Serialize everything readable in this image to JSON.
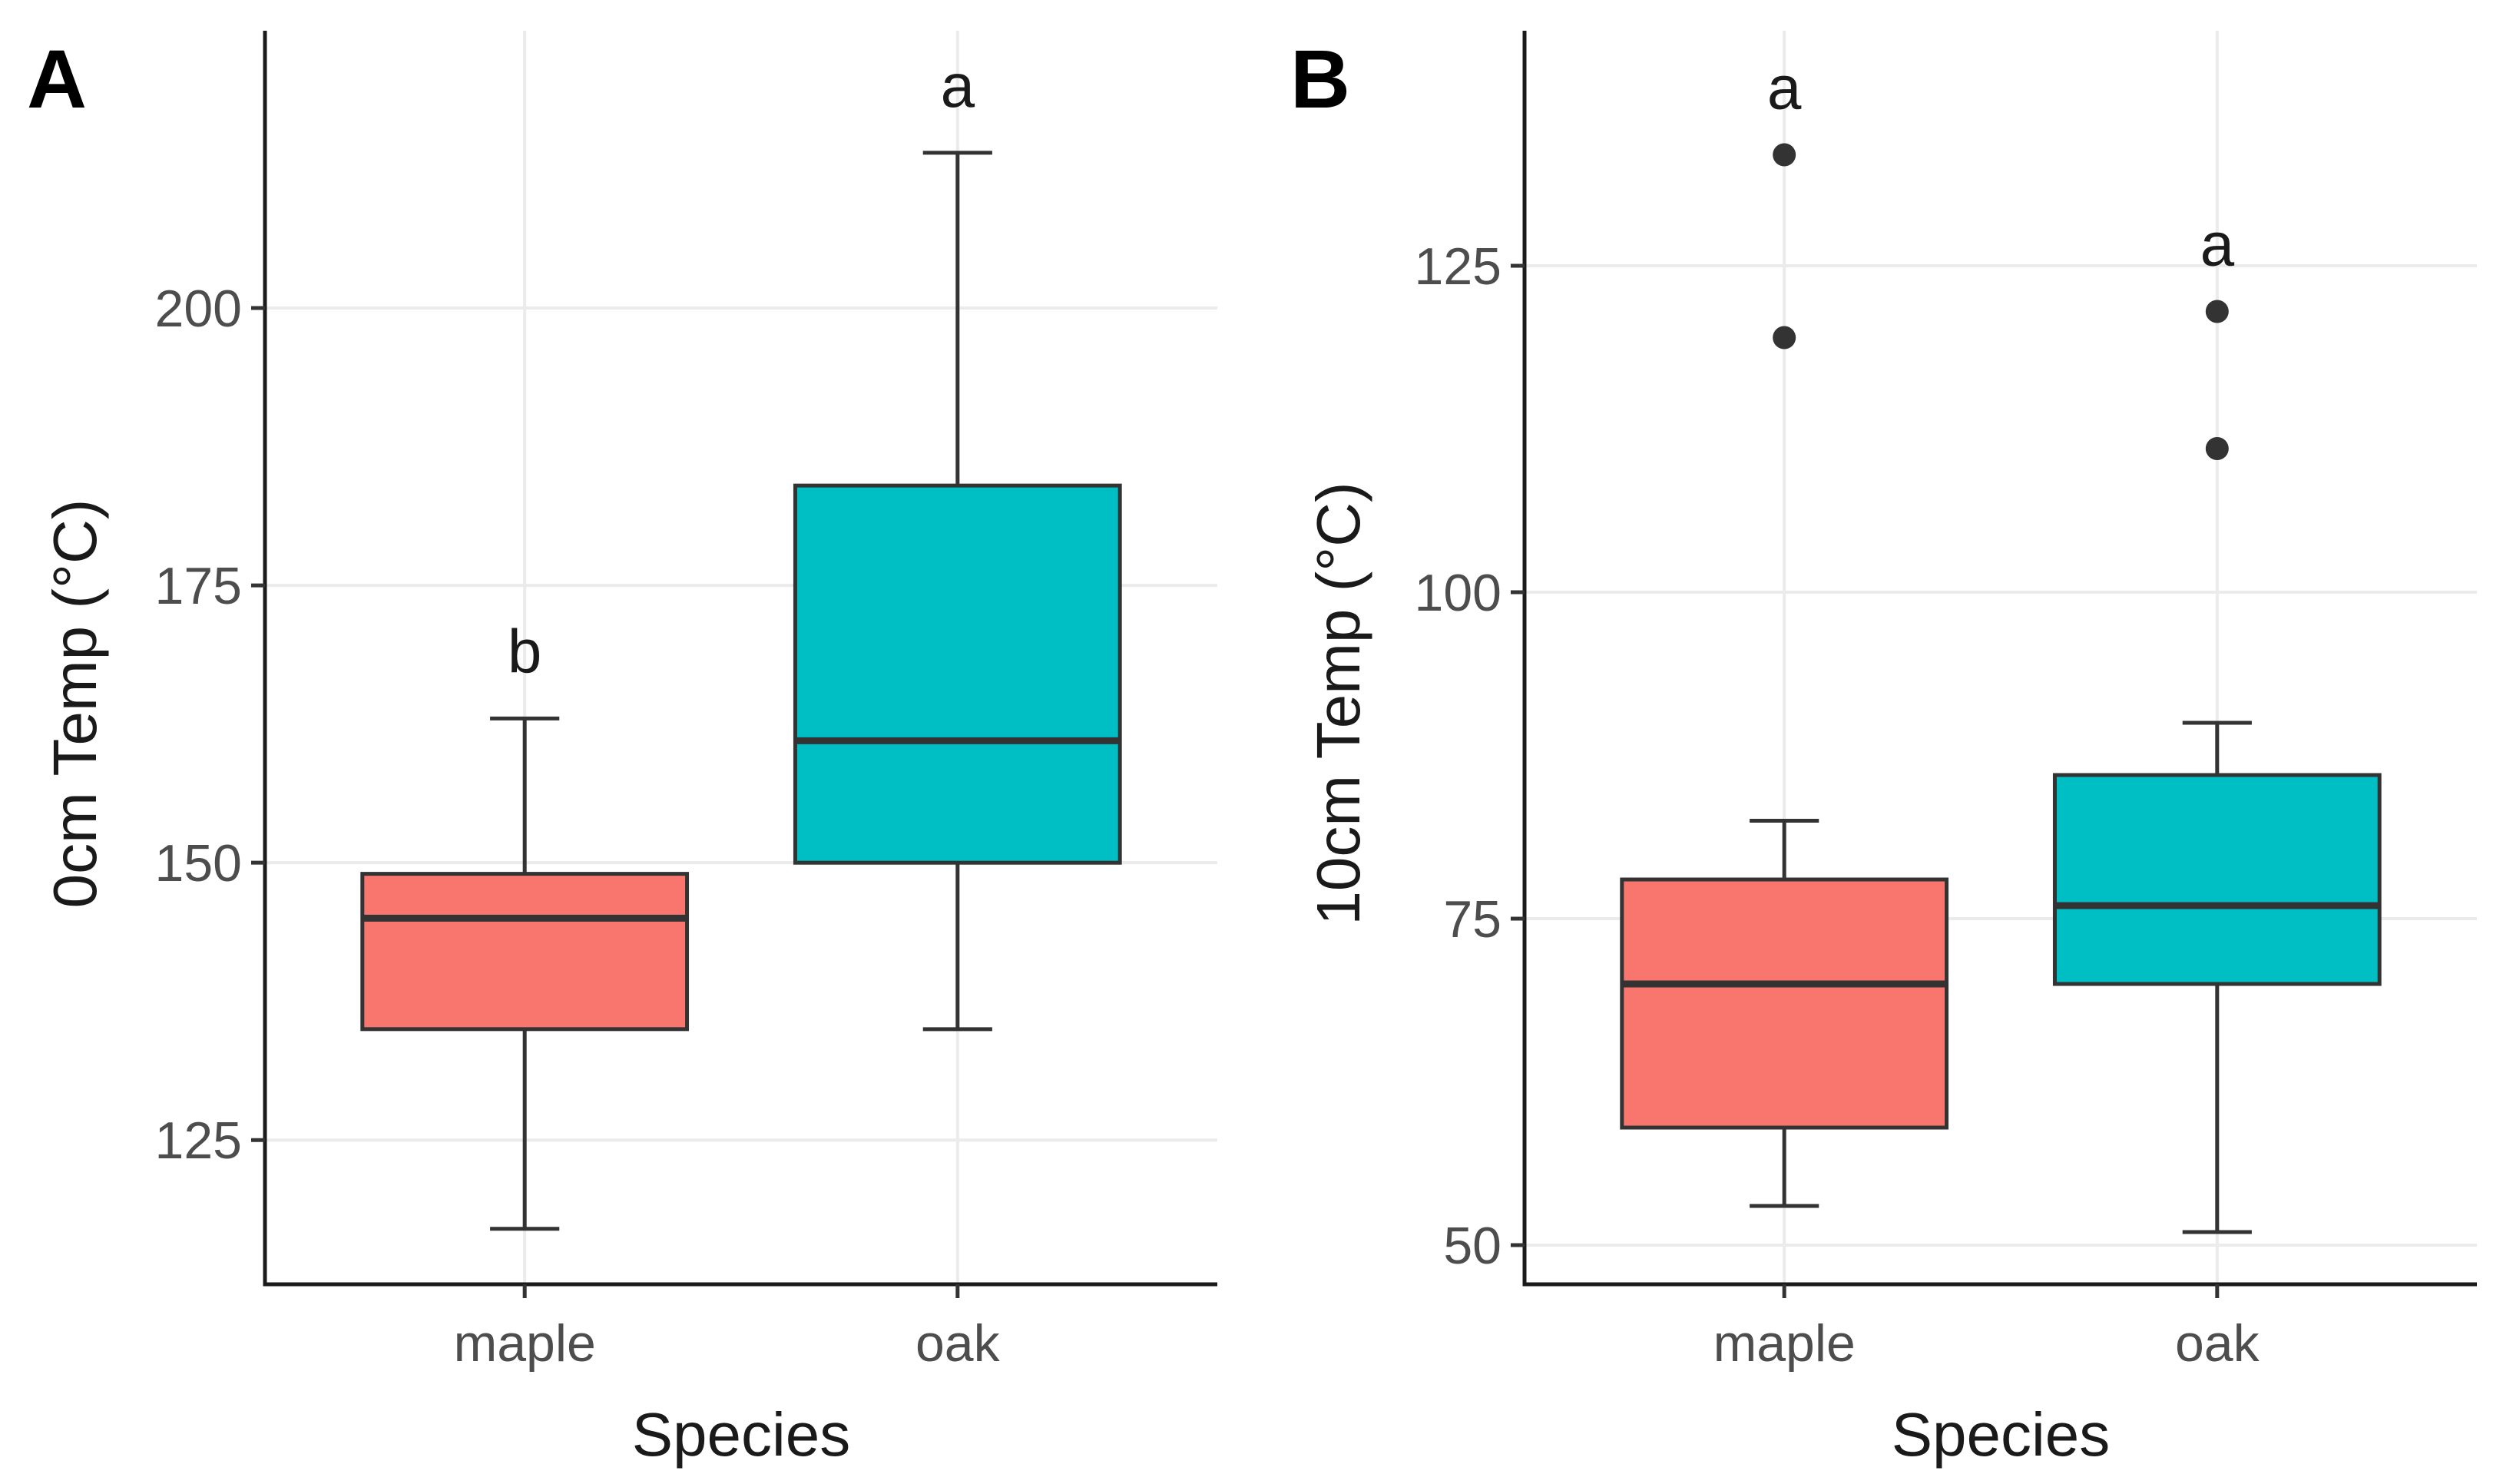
{
  "chart_data": [
    {
      "panel": "A",
      "type": "boxplot",
      "title": "",
      "xlabel": "Species",
      "ylabel": "0cm Temp (°C)",
      "categories": [
        "maple",
        "oak"
      ],
      "ylim": [
        112,
        225
      ],
      "yticks": [
        125,
        150,
        175,
        200
      ],
      "boxes": [
        {
          "category": "maple",
          "whisker_low": 117,
          "q1": 135,
          "median": 145,
          "q3": 149,
          "whisker_high": 163,
          "outliers": [],
          "letter": "b",
          "fill": "#F8766D"
        },
        {
          "category": "oak",
          "whisker_low": 135,
          "q1": 150,
          "median": 161,
          "q3": 184,
          "whisker_high": 214,
          "outliers": [],
          "letter": "a",
          "fill": "#00BFC4"
        }
      ]
    },
    {
      "panel": "B",
      "type": "boxplot",
      "title": "",
      "xlabel": "Species",
      "ylabel": "10cm Temp (°C)",
      "categories": [
        "maple",
        "oak"
      ],
      "ylim": [
        47,
        143
      ],
      "yticks": [
        50,
        75,
        100,
        125
      ],
      "boxes": [
        {
          "category": "maple",
          "whisker_low": 53,
          "q1": 59,
          "median": 70,
          "q3": 78,
          "whisker_high": 82.5,
          "outliers": [
            119.5,
            133.5
          ],
          "letter": "a",
          "fill": "#F8766D"
        },
        {
          "category": "oak",
          "whisker_low": 51,
          "q1": 70,
          "median": 76,
          "q3": 86,
          "whisker_high": 90,
          "outliers": [
            111,
            121.5
          ],
          "letter": "a",
          "fill": "#00BFC4"
        }
      ]
    }
  ]
}
